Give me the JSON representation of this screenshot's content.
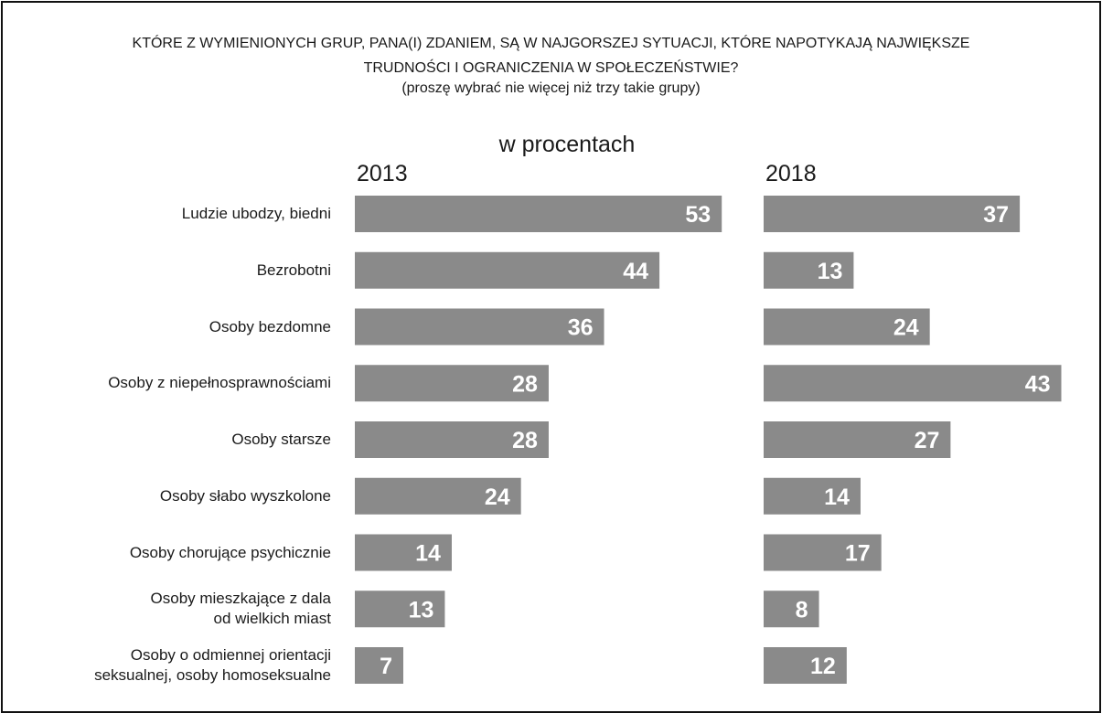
{
  "chart_data": {
    "type": "bar",
    "orientation": "horizontal",
    "title": "KTÓRE Z WYMIENIONYCH GRUP, PANA(I) ZDANIEM, SĄ W NAJGORSZEJ SYTUACJI, KTÓRE NAPOTYKAJĄ NAJWIĘKSZE\nTRUDNOŚCI I OGRANICZENIA W SPOŁECZEŃSTWIE?",
    "subtitle": "(proszę wybrać nie więcej niż trzy takie grupy)",
    "unit_label": "w procentach",
    "categories": [
      "Ludzie ubodzy, biedni",
      "Bezrobotni",
      "Osoby bezdomne",
      "Osoby z niepełnosprawnościami",
      "Osoby starsze",
      "Osoby słabo wyszkolone",
      "Osoby chorujące psychicznie",
      "Osoby mieszkające z dala\nod wielkich miast",
      "Osoby o odmiennej orientacji\nseksualnej, osoby homoseksualne"
    ],
    "series": [
      {
        "name": "2013",
        "color": "#8a8a8a",
        "values": [
          53,
          44,
          36,
          28,
          28,
          24,
          14,
          13,
          7
        ]
      },
      {
        "name": "2018",
        "color": "#8a8a8a",
        "values": [
          37,
          13,
          24,
          43,
          27,
          14,
          17,
          8,
          12
        ]
      }
    ]
  }
}
